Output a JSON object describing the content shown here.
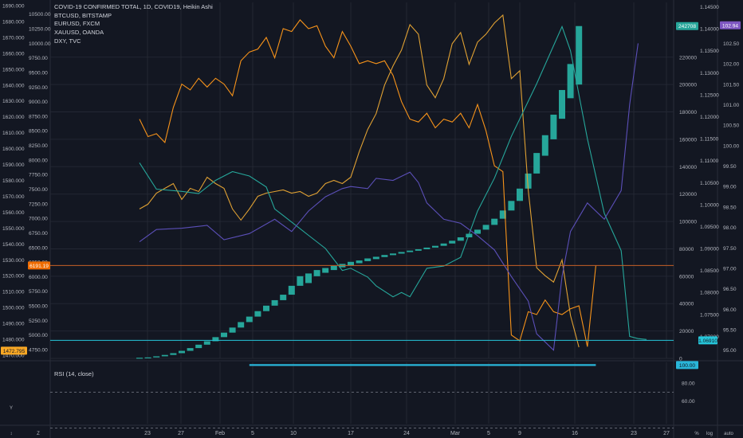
{
  "legend": [
    "COVID-19 CONFIRMED TOTAL, 1D, COVID19, Heikin Ashi",
    "BTCUSD, BITSTAMP",
    "EURUSD, FXCM",
    "XAUUSD, OANDA",
    "DXY, TVC"
  ],
  "rsi": {
    "label": "RSI (14, close)",
    "value": 100.0,
    "ticks": [
      "100.00",
      "80.00",
      "60.00"
    ],
    "bands": [
      70,
      30
    ]
  },
  "colors": {
    "background": "#131722",
    "grid": "#232733",
    "text": "#b2b5be",
    "covid": "#26a69a",
    "btc": "#f7931a",
    "eurusd": "#26a69a",
    "xauusd": "#e0a133",
    "dxy": "#5b4fb8",
    "hline": "#c65f27",
    "eur_marker": "#26c6da",
    "dxy_marker": "#7e57c2",
    "xau_marker": "#f9a825",
    "btc_marker": "#ef6c00",
    "rsi": "#29b6d9"
  },
  "chart_data": {
    "type": "line",
    "x_ticks": [
      "23",
      "27",
      "Feb",
      "5",
      "10",
      "17",
      "24",
      "Mar",
      "5",
      "9",
      "16",
      "23",
      "27"
    ],
    "covid_total": {
      "name": "COVID-19 CONFIRMED TOTAL",
      "style": "candle",
      "bodies": [
        [
          0,
          450
        ],
        [
          0,
          700
        ],
        [
          700,
          1500
        ],
        [
          1500,
          2500
        ],
        [
          2500,
          3800
        ],
        [
          3800,
          5500
        ],
        [
          5500,
          7500
        ],
        [
          7500,
          10000
        ],
        [
          10000,
          12500
        ],
        [
          12500,
          15500
        ],
        [
          15500,
          18800
        ],
        [
          18800,
          22500
        ],
        [
          22500,
          26500
        ],
        [
          26500,
          30500
        ],
        [
          30500,
          34500
        ],
        [
          34500,
          38500
        ],
        [
          38500,
          42500
        ],
        [
          42500,
          46500
        ],
        [
          46500,
          53000
        ],
        [
          53000,
          60000
        ],
        [
          55000,
          62000
        ],
        [
          60000,
          64500
        ],
        [
          62500,
          66000
        ],
        [
          64500,
          67500
        ],
        [
          66500,
          69000
        ],
        [
          68000,
          70500
        ],
        [
          69500,
          71500
        ],
        [
          71000,
          73000
        ],
        [
          72500,
          74200
        ],
        [
          74000,
          75500
        ],
        [
          75400,
          76600
        ],
        [
          76500,
          77700
        ],
        [
          77600,
          78700
        ],
        [
          78600,
          79700
        ],
        [
          79700,
          80900
        ],
        [
          80900,
          82200
        ],
        [
          82200,
          83900
        ],
        [
          83900,
          85900
        ],
        [
          85900,
          88400
        ],
        [
          88400,
          91000
        ],
        [
          91000,
          94000
        ],
        [
          94000,
          97500
        ],
        [
          97500,
          102000
        ],
        [
          102000,
          108000
        ],
        [
          108000,
          115000
        ],
        [
          115000,
          124000
        ],
        [
          124000,
          135000
        ],
        [
          135000,
          150000
        ],
        [
          148000,
          163000
        ],
        [
          160000,
          178000
        ],
        [
          175000,
          196000
        ],
        [
          190000,
          215000
        ],
        [
          200000,
          242708
        ]
      ],
      "last": "242708",
      "ylim": [
        0,
        260000
      ],
      "ticks": [
        0,
        20000,
        40000,
        60000,
        80000,
        100000,
        120000,
        140000,
        160000,
        180000,
        200000,
        220000
      ]
    },
    "btcusd": {
      "name": "BTCUSD, BITSTAMP",
      "values": [
        [
          0,
          8700
        ],
        [
          1,
          8400
        ],
        [
          2,
          8450
        ],
        [
          3,
          8300
        ],
        [
          4,
          8900
        ],
        [
          5,
          9300
        ],
        [
          6,
          9200
        ],
        [
          7,
          9400
        ],
        [
          8,
          9250
        ],
        [
          9,
          9400
        ],
        [
          10,
          9300
        ],
        [
          11,
          9100
        ],
        [
          12,
          9700
        ],
        [
          13,
          9850
        ],
        [
          14,
          9900
        ],
        [
          15,
          10100
        ],
        [
          16,
          9750
        ],
        [
          17,
          10250
        ],
        [
          18,
          10200
        ],
        [
          19,
          10400
        ],
        [
          20,
          10250
        ],
        [
          21,
          10300
        ],
        [
          22,
          9950
        ],
        [
          23,
          9750
        ],
        [
          24,
          10200
        ],
        [
          25,
          9950
        ],
        [
          26,
          9650
        ],
        [
          27,
          9700
        ],
        [
          28,
          9650
        ],
        [
          29,
          9700
        ],
        [
          30,
          9450
        ],
        [
          31,
          9000
        ],
        [
          32,
          8700
        ],
        [
          33,
          8650
        ],
        [
          34,
          8800
        ],
        [
          35,
          8550
        ],
        [
          36,
          8700
        ],
        [
          37,
          8650
        ],
        [
          38,
          8800
        ],
        [
          39,
          8550
        ],
        [
          40,
          8950
        ],
        [
          41,
          8500
        ],
        [
          42,
          7900
        ],
        [
          43,
          7800
        ],
        [
          44,
          5000
        ],
        [
          45,
          4900
        ],
        [
          46,
          5400
        ],
        [
          47,
          5350
        ],
        [
          48,
          5600
        ],
        [
          49,
          5400
        ],
        [
          50,
          5350
        ],
        [
          51,
          5450
        ],
        [
          52,
          5500
        ],
        [
          53,
          4800
        ],
        [
          54,
          6190
        ]
      ],
      "last": "6191.19",
      "ylim": [
        4600,
        10700
      ],
      "ticks": [
        4750,
        5000,
        5250,
        5500,
        5750,
        6000,
        6250,
        6500,
        6750,
        7000,
        7250,
        7500,
        7750,
        8000,
        8250,
        8500,
        8750,
        9000,
        9250,
        9500,
        9750,
        10000,
        10250,
        10500
      ]
    },
    "eurusd": {
      "name": "EURUSD, FXCM",
      "values": [
        [
          0,
          1.1095
        ],
        [
          2,
          1.1035
        ],
        [
          5,
          1.103
        ],
        [
          7,
          1.1025
        ],
        [
          9,
          1.1055
        ],
        [
          11,
          1.1075
        ],
        [
          13,
          1.1065
        ],
        [
          15,
          1.104
        ],
        [
          16,
          1.099
        ],
        [
          17,
          1.0975
        ],
        [
          20,
          1.093
        ],
        [
          22,
          1.09
        ],
        [
          24,
          1.085
        ],
        [
          25,
          1.0855
        ],
        [
          27,
          1.0835
        ],
        [
          28,
          1.0815
        ],
        [
          30,
          1.079
        ],
        [
          31,
          1.08
        ],
        [
          32,
          1.079
        ],
        [
          34,
          1.0855
        ],
        [
          36,
          1.086
        ],
        [
          38,
          1.088
        ],
        [
          40,
          1.0985
        ],
        [
          42,
          1.106
        ],
        [
          44,
          1.1155
        ],
        [
          47,
          1.1275
        ],
        [
          50,
          1.1405
        ],
        [
          51,
          1.135
        ],
        [
          53,
          1.115
        ],
        [
          55,
          1.098
        ],
        [
          57,
          1.0895
        ],
        [
          58,
          1.07
        ],
        [
          59,
          1.0695
        ],
        [
          60,
          1.0693
        ]
      ],
      "last": "1.06910",
      "ylim": [
        1.065,
        1.146
      ],
      "ticks": [
        1.07,
        1.075,
        1.08,
        1.085,
        1.09,
        1.095,
        1.1,
        1.105,
        1.11,
        1.115,
        1.12,
        1.125,
        1.13,
        1.135,
        1.14,
        1.145
      ]
    },
    "xauusd": {
      "name": "XAUUSD, OANDA",
      "values": [
        [
          0,
          1562
        ],
        [
          1,
          1565
        ],
        [
          2,
          1572
        ],
        [
          3,
          1575
        ],
        [
          4,
          1578
        ],
        [
          5,
          1568
        ],
        [
          6,
          1575
        ],
        [
          7,
          1573
        ],
        [
          8,
          1582
        ],
        [
          9,
          1578
        ],
        [
          10,
          1575
        ],
        [
          11,
          1562
        ],
        [
          12,
          1555
        ],
        [
          13,
          1562
        ],
        [
          14,
          1570
        ],
        [
          15,
          1572
        ],
        [
          16,
          1573
        ],
        [
          17,
          1574
        ],
        [
          18,
          1572
        ],
        [
          19,
          1573
        ],
        [
          20,
          1570
        ],
        [
          21,
          1572
        ],
        [
          22,
          1578
        ],
        [
          23,
          1580
        ],
        [
          24,
          1578
        ],
        [
          25,
          1582
        ],
        [
          26,
          1598
        ],
        [
          27,
          1612
        ],
        [
          28,
          1622
        ],
        [
          29,
          1640
        ],
        [
          30,
          1652
        ],
        [
          31,
          1662
        ],
        [
          32,
          1678
        ],
        [
          33,
          1672
        ],
        [
          34,
          1640
        ],
        [
          35,
          1632
        ],
        [
          36,
          1644
        ],
        [
          37,
          1666
        ],
        [
          38,
          1673
        ],
        [
          39,
          1653
        ],
        [
          40,
          1667
        ],
        [
          41,
          1672
        ],
        [
          42,
          1679
        ],
        [
          43,
          1684
        ],
        [
          44,
          1644
        ],
        [
          45,
          1649
        ],
        [
          46,
          1574
        ],
        [
          47,
          1525
        ],
        [
          48,
          1520
        ],
        [
          49,
          1516
        ],
        [
          50,
          1530
        ],
        [
          51,
          1495
        ],
        [
          52,
          1475
        ]
      ],
      "last": "1472.795",
      "ylim": [
        1468,
        1692
      ],
      "ticks": [
        1470,
        1480,
        1490,
        1500,
        1510,
        1520,
        1530,
        1540,
        1550,
        1560,
        1570,
        1580,
        1590,
        1600,
        1610,
        1620,
        1630,
        1640,
        1650,
        1660,
        1670,
        1680,
        1690
      ]
    },
    "dxy": {
      "name": "DXY, TVC",
      "values": [
        [
          0,
          97.65
        ],
        [
          2,
          97.95
        ],
        [
          5,
          97.98
        ],
        [
          8,
          98.05
        ],
        [
          10,
          97.7
        ],
        [
          13,
          97.85
        ],
        [
          16,
          98.2
        ],
        [
          18,
          97.9
        ],
        [
          20,
          98.4
        ],
        [
          22,
          98.75
        ],
        [
          24,
          98.95
        ],
        [
          25,
          99.0
        ],
        [
          27,
          98.95
        ],
        [
          28,
          99.2
        ],
        [
          30,
          99.15
        ],
        [
          32,
          99.35
        ],
        [
          33,
          99.1
        ],
        [
          34,
          98.6
        ],
        [
          36,
          98.2
        ],
        [
          38,
          98.1
        ],
        [
          40,
          97.8
        ],
        [
          42,
          97.45
        ],
        [
          44,
          96.8
        ],
        [
          46,
          96.2
        ],
        [
          47,
          95.4
        ],
        [
          49,
          95.0
        ],
        [
          50,
          96.8
        ],
        [
          51,
          97.9
        ],
        [
          53,
          98.6
        ],
        [
          55,
          98.2
        ],
        [
          57,
          98.9
        ],
        [
          58,
          101.0
        ],
        [
          59,
          102.5
        ]
      ],
      "last": "102.94",
      "ylim": [
        94.8,
        103.5
      ],
      "ticks": [
        95.0,
        95.5,
        96.0,
        96.5,
        97.0,
        97.5,
        98.0,
        98.5,
        99.0,
        99.5,
        100.0,
        100.5,
        101.0,
        101.5,
        102.0,
        102.5
      ]
    }
  }
}
